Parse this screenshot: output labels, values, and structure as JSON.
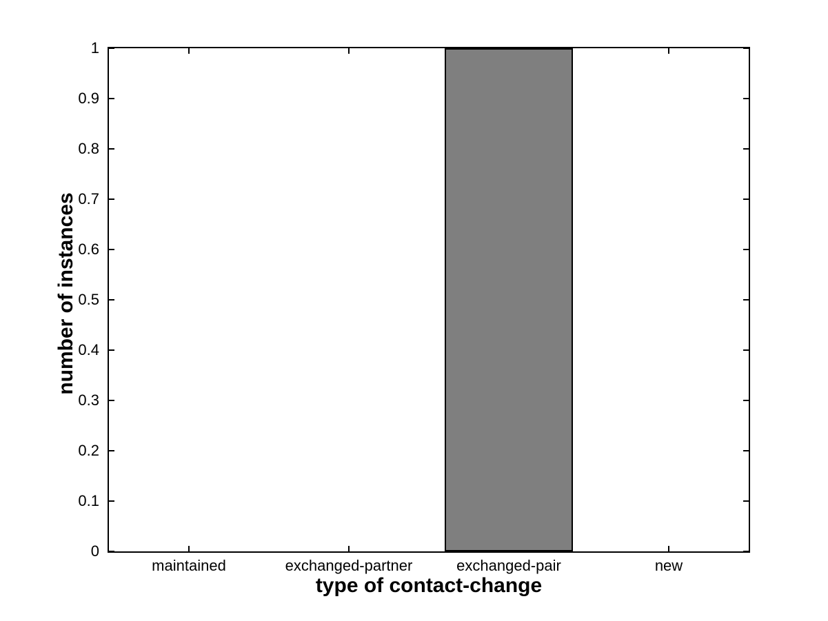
{
  "chart_data": {
    "type": "bar",
    "xlabel": "type of contact-change",
    "ylabel": "number of instances",
    "categories": [
      "maintained",
      "exchanged-partner",
      "exchanged-pair",
      "new"
    ],
    "values": [
      0,
      0,
      1,
      0
    ],
    "ylim": [
      0,
      1
    ],
    "yticks": [
      0,
      0.1,
      0.2,
      0.3,
      0.4,
      0.5,
      0.6,
      0.7,
      0.8,
      0.9,
      1
    ],
    "ytick_labels": [
      "0",
      "0.1",
      "0.2",
      "0.3",
      "0.4",
      "0.5",
      "0.6",
      "0.7",
      "0.8",
      "0.9",
      "1"
    ],
    "bar_width_fraction": 0.8,
    "colors": {
      "bar_fill": "#7f7f7f",
      "bar_edge": "#000000",
      "axis": "#000000",
      "background": "#ffffff",
      "text": "#000000"
    },
    "grid": false,
    "legend": "none",
    "box": "on",
    "tick_direction": "in"
  }
}
